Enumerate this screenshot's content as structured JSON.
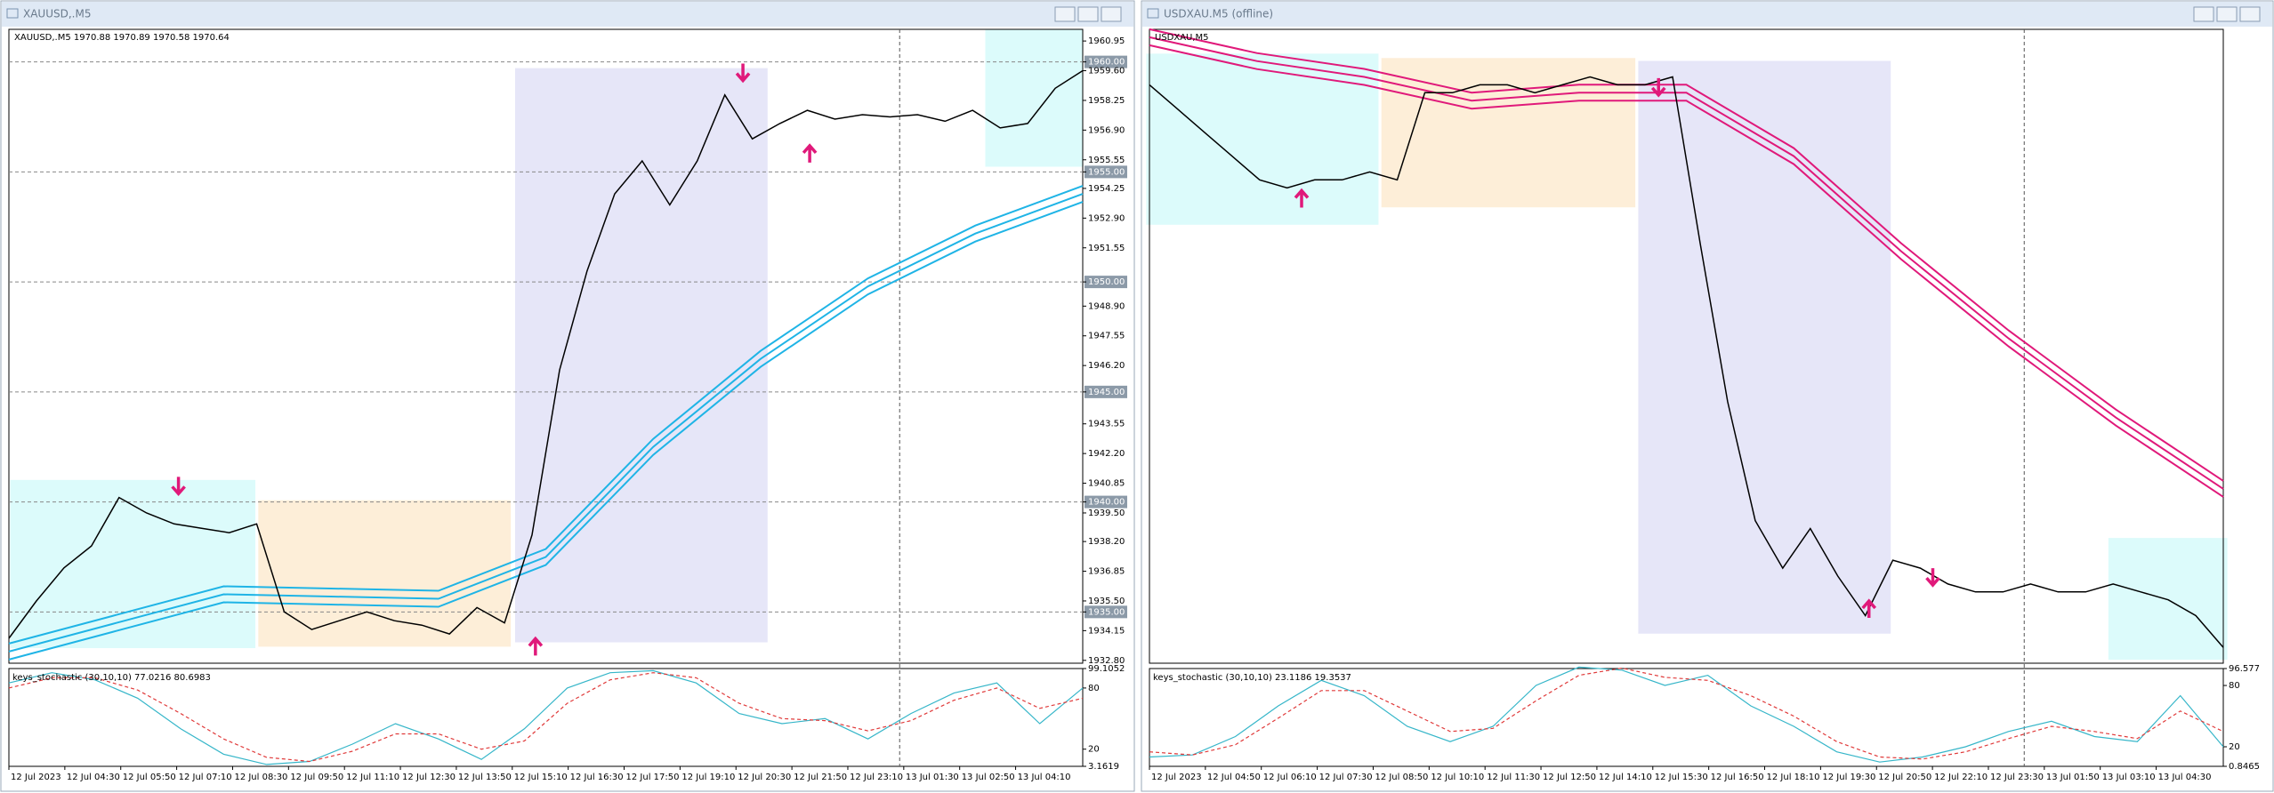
{
  "windows": [
    {
      "title": "XAUUSD,.M5",
      "header": "XAUUSD,.M5  1970.88 1970.89 1970.58 1970.64",
      "price": {
        "ylim": [
          1932.67,
          1961.48
        ],
        "color": "#000000",
        "values": [
          1933.8,
          1935.5,
          1937.0,
          1938.0,
          1940.2,
          1939.5,
          1939.0,
          1938.8,
          1938.6,
          1939.0,
          1935.0,
          1934.2,
          1934.6,
          1935.0,
          1934.6,
          1934.4,
          1934.0,
          1935.2,
          1934.5,
          1938.5,
          1946.0,
          1950.5,
          1954.0,
          1955.5,
          1953.5,
          1955.5,
          1958.5,
          1956.5,
          1957.2,
          1957.8,
          1957.4,
          1957.6,
          1957.5,
          1957.6,
          1957.3,
          1957.8,
          1957.0,
          1957.2,
          1958.8,
          1959.6
        ],
        "ma": {
          "color": "#1fb4e6",
          "values": [
            1933.2,
            1934.5,
            1935.8,
            1935.7,
            1935.6,
            1937.5,
            1942.5,
            1946.5,
            1949.8,
            1952.2,
            1954.0
          ]
        },
        "yticks": [
          {
            "value": 1960.95,
            "label": "1960.95"
          },
          {
            "value": 1960.0,
            "label": "1960.00",
            "highlight": true
          },
          {
            "value": 1959.6,
            "label": "1959.60"
          },
          {
            "value": 1958.25,
            "label": "1958.25"
          },
          {
            "value": 1956.9,
            "label": "1956.90"
          },
          {
            "value": 1955.55,
            "label": "1955.55"
          },
          {
            "value": 1955.0,
            "label": "1955.00",
            "highlight": true
          },
          {
            "value": 1954.25,
            "label": "1954.25"
          },
          {
            "value": 1952.9,
            "label": "1952.90"
          },
          {
            "value": 1951.55,
            "label": "1951.55"
          },
          {
            "value": 1950.0,
            "label": "1950.00",
            "highlight": true
          },
          {
            "value": 1948.9,
            "label": "1948.90"
          },
          {
            "value": 1947.55,
            "label": "1947.55"
          },
          {
            "value": 1946.2,
            "label": "1946.20"
          },
          {
            "value": 1945.0,
            "label": "1945.00",
            "highlight": true
          },
          {
            "value": 1943.55,
            "label": "1943.55"
          },
          {
            "value": 1942.2,
            "label": "1942.20"
          },
          {
            "value": 1940.85,
            "label": "1940.85"
          },
          {
            "value": 1940.0,
            "label": "1940.00",
            "highlight": true
          },
          {
            "value": 1939.5,
            "label": "1939.50"
          },
          {
            "value": 1938.2,
            "label": "1938.20"
          },
          {
            "value": 1936.85,
            "label": "1936.85"
          },
          {
            "value": 1935.5,
            "label": "1935.50"
          },
          {
            "value": 1935.0,
            "label": "1935.00",
            "highlight": true
          },
          {
            "value": 1934.15,
            "label": "1934.15"
          },
          {
            "value": 1932.8,
            "label": "1932.80"
          }
        ]
      },
      "indicator": {
        "label": "keys_stochastic (30,10,10) 77.0216 80.6983",
        "ylim": [
          3.1619,
          99.1052
        ],
        "yticks": [
          99.1052,
          80,
          20,
          3.1619
        ],
        "series": [
          {
            "color": "#36b6c9",
            "values": [
              85,
              95,
              88,
              70,
              40,
              15,
              5,
              8,
              25,
              45,
              30,
              10,
              40,
              80,
              95,
              97,
              85,
              55,
              45,
              50,
              30,
              55,
              75,
              85,
              45,
              80
            ]
          },
          {
            "color": "#e03a3a",
            "values": [
              80,
              90,
              90,
              78,
              55,
              30,
              12,
              8,
              18,
              35,
              35,
              20,
              28,
              65,
              88,
              95,
              90,
              65,
              50,
              48,
              38,
              48,
              68,
              80,
              60,
              70
            ]
          }
        ]
      },
      "time_labels": [
        "12 Jul 2023",
        "12 Jul 04:30",
        "12 Jul 05:50",
        "12 Jul 07:10",
        "12 Jul 08:30",
        "12 Jul 09:50",
        "12 Jul 11:10",
        "12 Jul 12:30",
        "12 Jul 13:50",
        "12 Jul 15:10",
        "12 Jul 16:30",
        "12 Jul 17:50",
        "12 Jul 19:10",
        "12 Jul 20:30",
        "12 Jul 21:50",
        "12 Jul 23:10",
        "13 Jul 01:30",
        "13 Jul 02:50",
        "13 Jul 04:10"
      ]
    },
    {
      "title": "USDXAU.M5 (offline)",
      "header": "USDXAU,M5",
      "price": {
        "ylim": [
          0.00051,
          0.000518
        ],
        "color": "#000000",
        "values": [
          0.0005173,
          0.000517,
          0.0005167,
          0.0005164,
          0.0005161,
          0.000516,
          0.0005161,
          0.0005161,
          0.0005162,
          0.0005161,
          0.0005172,
          0.0005172,
          0.0005173,
          0.0005173,
          0.0005172,
          0.0005173,
          0.0005174,
          0.0005173,
          0.0005173,
          0.0005174,
          0.0005153,
          0.0005133,
          0.0005118,
          0.0005112,
          0.0005117,
          0.0005111,
          0.0005106,
          0.0005113,
          0.0005112,
          0.000511,
          0.0005109,
          0.0005109,
          0.000511,
          0.0005109,
          0.0005109,
          0.000511,
          0.0005109,
          0.0005108,
          0.0005106,
          0.0005102
        ],
        "ma": {
          "color": "#e0197a",
          "values": [
            0.0005179,
            0.0005176,
            0.0005174,
            0.0005171,
            0.0005172,
            0.0005172,
            0.0005164,
            0.0005152,
            0.0005141,
            0.0005131,
            0.0005122
          ]
        }
      },
      "indicator": {
        "label": "keys_stochastic (30,10,10) 23.1186 19.3537",
        "ylim": [
          0.8465,
          96.577
        ],
        "yticks": [
          96.577,
          80,
          20,
          0.8465
        ],
        "series": [
          {
            "color": "#36b6c9",
            "values": [
              10,
              12,
              30,
              60,
              85,
              70,
              40,
              25,
              40,
              80,
              98,
              95,
              80,
              90,
              60,
              40,
              15,
              5,
              10,
              20,
              35,
              45,
              30,
              25,
              70,
              20
            ]
          },
          {
            "color": "#e03a3a",
            "values": [
              15,
              12,
              22,
              48,
              75,
              75,
              55,
              35,
              38,
              65,
              90,
              97,
              88,
              85,
              70,
              50,
              25,
              10,
              8,
              15,
              28,
              40,
              35,
              28,
              55,
              35
            ]
          }
        ]
      },
      "time_labels": [
        "12 Jul 2023",
        "12 Jul 04:50",
        "12 Jul 06:10",
        "12 Jul 07:30",
        "12 Jul 08:50",
        "12 Jul 10:10",
        "12 Jul 11:30",
        "12 Jul 12:50",
        "12 Jul 14:10",
        "12 Jul 15:30",
        "12 Jul 16:50",
        "12 Jul 18:10",
        "12 Jul 19:30",
        "12 Jul 20:50",
        "12 Jul 22:10",
        "12 Jul 23:30",
        "13 Jul 01:50",
        "13 Jul 03:10",
        "13 Jul 04:30"
      ]
    }
  ]
}
